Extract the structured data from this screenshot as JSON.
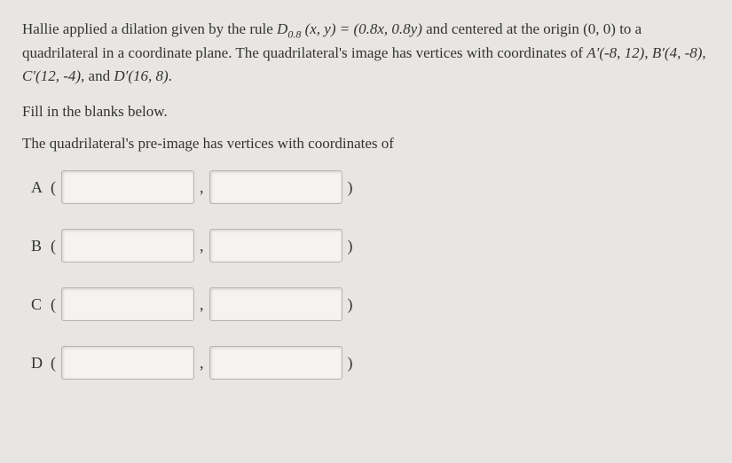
{
  "problem": {
    "line1_pre": "Hallie applied a dilation given by the rule ",
    "rule_D": "D",
    "rule_sub": "0.8",
    "rule_args": " (x, y) = (0.8x, 0.8y)",
    "line1_post": " and centered at the",
    "line2": "origin (0, 0) to a quadrilateral in a coordinate plane. The quadrilateral's image has vertices with",
    "line3_pre": "coordinates of ",
    "vertex_A": "A′(-8, 12)",
    "sep1": ", ",
    "vertex_B": "B′(4, -8)",
    "sep2": ", ",
    "vertex_C": "C′(12, -4)",
    "sep3": ", and ",
    "vertex_D": "D′(16, 8)",
    "period": "."
  },
  "instruction": "Fill in the blanks below.",
  "question": "The quadrilateral's pre-image has vertices with coordinates of",
  "rows": [
    {
      "label": "A"
    },
    {
      "label": "B"
    },
    {
      "label": "C"
    },
    {
      "label": "D"
    }
  ],
  "paren_open": "(",
  "paren_close": ")",
  "comma": ",",
  "style": {
    "background_color": "#e8e6e3",
    "input_bg": "#f5f3f0",
    "input_border": "#b8b5b0",
    "text_color": "#333",
    "font_family": "Georgia, Times New Roman, serif",
    "body_fontsize": 17,
    "input_width": 150,
    "input_height": 38
  }
}
